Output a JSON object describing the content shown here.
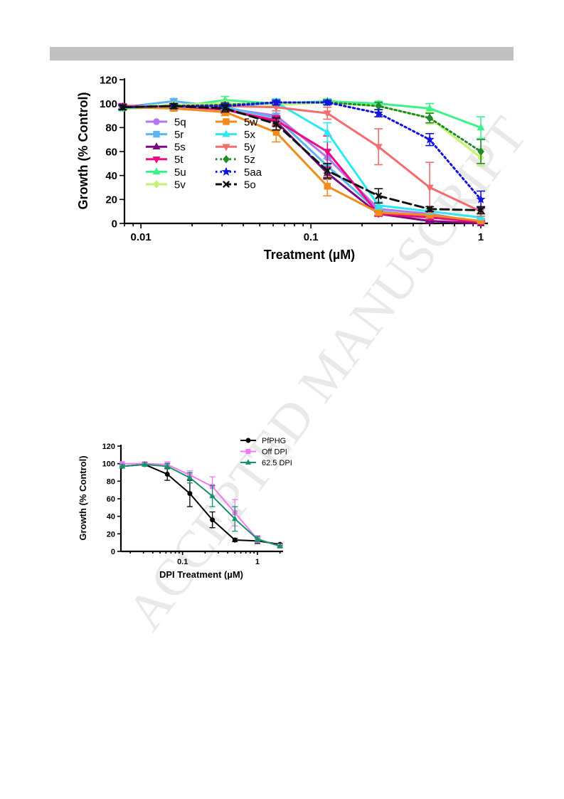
{
  "watermark": "ACCEPTED MANUSCRIPT",
  "chart_data": [
    {
      "type": "line",
      "title": "",
      "xlabel": "Treatment (µM)",
      "ylabel": "Growth (% Control)",
      "xscale": "log",
      "xlim": [
        0.008,
        1.1
      ],
      "ylim": [
        0,
        120
      ],
      "xticks": [
        0.01,
        0.1,
        1
      ],
      "xtick_labels": [
        "0.01",
        "0.1",
        "1"
      ],
      "yticks": [
        0,
        20,
        40,
        60,
        80,
        100,
        120
      ],
      "legend_position": "inside-left",
      "x": [
        0.0078,
        0.0156,
        0.03125,
        0.0625,
        0.125,
        0.25,
        0.5,
        1
      ],
      "series": [
        {
          "name": "5q",
          "color": "#b476ee",
          "marker": "circle",
          "dash": "solid",
          "values": [
            97,
            98,
            96,
            90,
            55,
            12,
            8,
            1
          ],
          "errors": [
            2,
            2,
            3,
            4,
            6,
            3,
            2,
            1
          ]
        },
        {
          "name": "5r",
          "color": "#5ab6f0",
          "marker": "square",
          "dash": "solid",
          "values": [
            97,
            102,
            97,
            88,
            48,
            10,
            6,
            1
          ],
          "errors": [
            2,
            2,
            3,
            4,
            6,
            3,
            2,
            1
          ]
        },
        {
          "name": "5s",
          "color": "#7a0b80",
          "marker": "triangle-up",
          "dash": "solid",
          "values": [
            97,
            98,
            95,
            85,
            42,
            8,
            2,
            0
          ],
          "errors": [
            2,
            2,
            3,
            4,
            5,
            2,
            1,
            1
          ]
        },
        {
          "name": "5t",
          "color": "#ee0b82",
          "marker": "triangle-down",
          "dash": "solid",
          "values": [
            98,
            98,
            95,
            86,
            60,
            8,
            5,
            1
          ],
          "errors": [
            2,
            2,
            3,
            4,
            13,
            2,
            2,
            1
          ]
        },
        {
          "name": "5u",
          "color": "#3cf08a",
          "marker": "triangle-up",
          "dash": "solid",
          "values": [
            96,
            97,
            103,
            100,
            102,
            100,
            96,
            80
          ],
          "errors": [
            2,
            2,
            3,
            2,
            2,
            2,
            4,
            9
          ]
        },
        {
          "name": "5v",
          "color": "#c6f26f",
          "marker": "diamond",
          "dash": "solid",
          "values": [
            97,
            99,
            100,
            99,
            101,
            98,
            88,
            55
          ],
          "errors": [
            2,
            2,
            2,
            2,
            2,
            3,
            5,
            7
          ]
        },
        {
          "name": "5w",
          "color": "#f38b1b",
          "marker": "square",
          "dash": "solid",
          "values": [
            97,
            96,
            93,
            76,
            31,
            9,
            7,
            2
          ],
          "errors": [
            2,
            2,
            3,
            8,
            8,
            2,
            2,
            1
          ]
        },
        {
          "name": "5x",
          "color": "#2de8f2",
          "marker": "triangle-up",
          "dash": "solid",
          "values": [
            97,
            98,
            97,
            101,
            76,
            15,
            10,
            5
          ],
          "errors": [
            2,
            2,
            2,
            3,
            8,
            3,
            2,
            1
          ]
        },
        {
          "name": "5y",
          "color": "#f26d6d",
          "marker": "triangle-down",
          "dash": "solid",
          "values": [
            97,
            98,
            98,
            97,
            92,
            64,
            30,
            10
          ],
          "errors": [
            2,
            2,
            2,
            3,
            5,
            15,
            21,
            4
          ]
        },
        {
          "name": "5z",
          "color": "#208a2c",
          "marker": "diamond",
          "dash": "dotted",
          "values": [
            97,
            98,
            99,
            101,
            101,
            98,
            88,
            60
          ],
          "errors": [
            2,
            2,
            2,
            2,
            2,
            3,
            4,
            10
          ]
        },
        {
          "name": "5aa",
          "color": "#1212e0",
          "marker": "star",
          "dash": "dotted",
          "values": [
            97,
            98,
            98,
            101,
            101,
            92,
            70,
            20
          ],
          "errors": [
            2,
            2,
            2,
            2,
            2,
            3,
            5,
            7
          ]
        },
        {
          "name": "5o",
          "color": "#111111",
          "marker": "cross",
          "dash": "dashed",
          "values": [
            97,
            98,
            96,
            83,
            44,
            23,
            12,
            11
          ],
          "errors": [
            2,
            2,
            3,
            5,
            6,
            6,
            2,
            3
          ]
        }
      ]
    },
    {
      "type": "line",
      "title": "",
      "xlabel": "DPI Treatment (µM)",
      "ylabel": "Growth (% Control)",
      "xscale": "log",
      "xlim": [
        0.015,
        2.2
      ],
      "ylim": [
        0,
        120
      ],
      "xticks": [
        0.1,
        1
      ],
      "xtick_labels": [
        "0.1",
        "1"
      ],
      "yticks": [
        0,
        20,
        40,
        60,
        80,
        100,
        120
      ],
      "legend_position": "top-right",
      "x": [
        0.0156,
        0.03125,
        0.0625,
        0.125,
        0.25,
        0.5,
        1,
        2
      ],
      "series": [
        {
          "name": "PfPHG",
          "color": "#000000",
          "marker": "circle",
          "dash": "solid",
          "values": [
            97,
            99,
            88,
            66,
            36,
            13,
            12,
            8
          ],
          "errors": [
            2,
            2,
            7,
            15,
            9,
            2,
            3,
            1
          ]
        },
        {
          "name": "Off DPI",
          "color": "#f279f2",
          "marker": "square",
          "dash": "solid",
          "values": [
            100,
            100,
            99,
            87,
            74,
            44,
            14,
            6
          ],
          "errors": [
            2,
            2,
            3,
            5,
            11,
            15,
            4,
            1
          ]
        },
        {
          "name": "62.5 DPI",
          "color": "#14946b",
          "marker": "triangle-up",
          "dash": "solid",
          "values": [
            97,
            99,
            97,
            84,
            63,
            37,
            14,
            6
          ],
          "errors": [
            2,
            2,
            3,
            6,
            12,
            14,
            3,
            1
          ]
        }
      ]
    }
  ]
}
